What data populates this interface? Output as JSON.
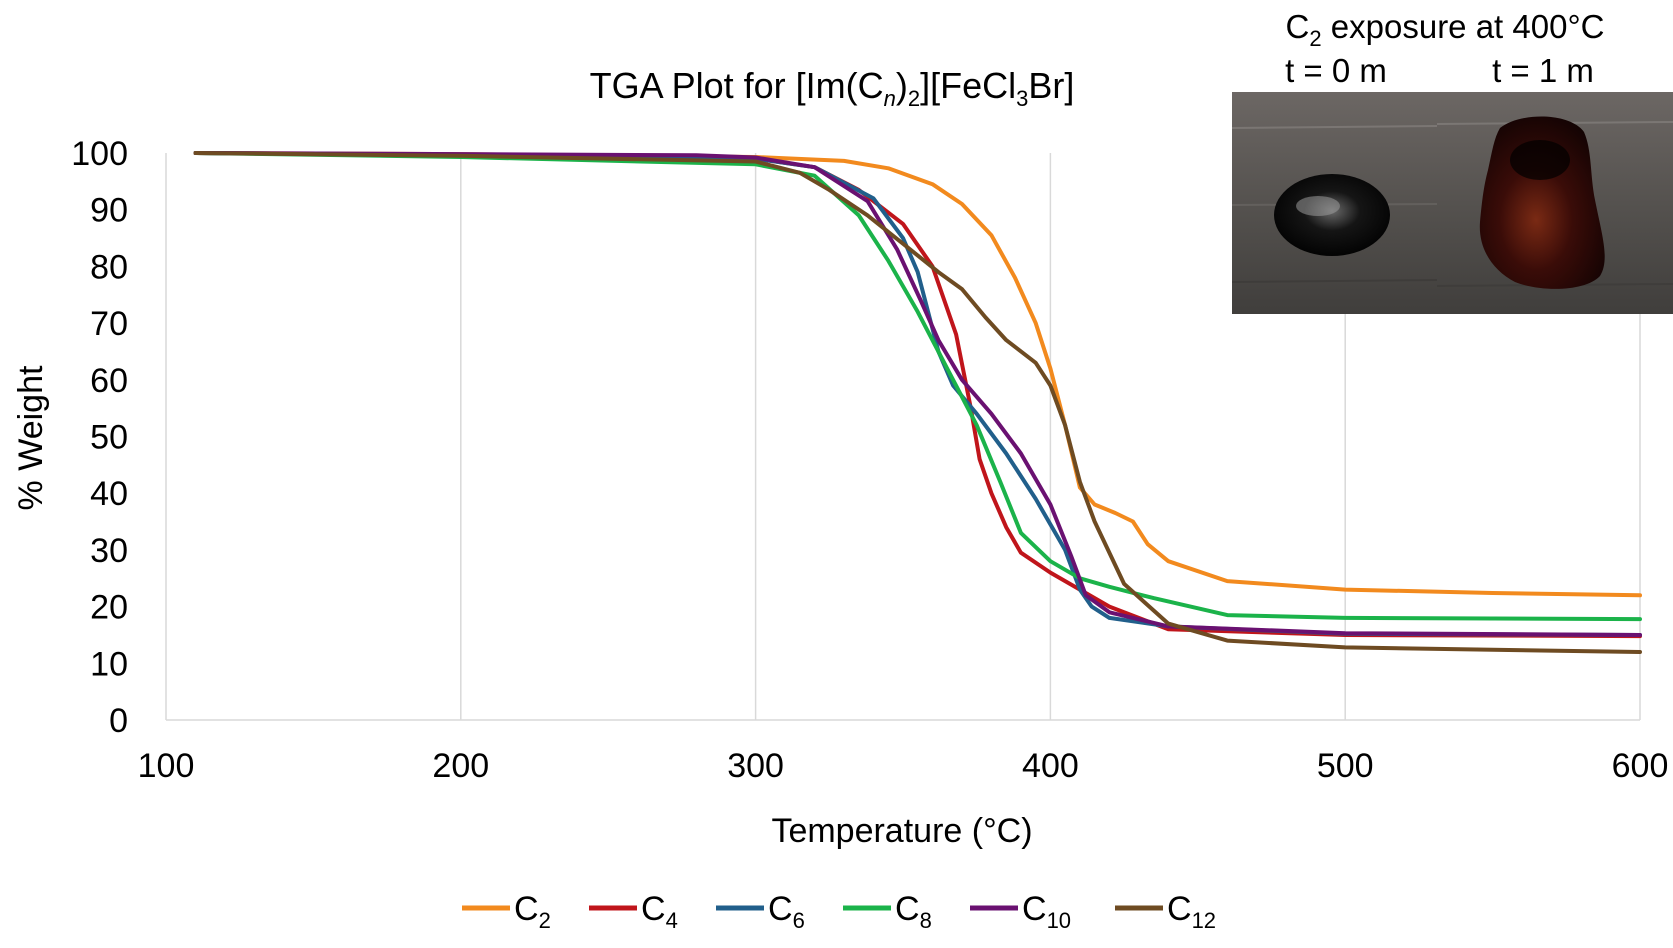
{
  "chart_data": {
    "type": "line",
    "title": {
      "prefix": "TGA Plot for [Im(C",
      "n": "n",
      "mid": ")",
      "two": "2",
      "mid2": "][FeCl",
      "three": "3",
      "suffix": "Br]"
    },
    "xlabel": "Temperature (°C)",
    "ylabel": "% Weight",
    "xlim": [
      100,
      600
    ],
    "ylim": [
      0,
      100
    ],
    "xticks": [
      100,
      200,
      300,
      400,
      500,
      600
    ],
    "yticks": [
      0,
      10,
      20,
      30,
      40,
      50,
      60,
      70,
      80,
      90,
      100
    ],
    "grid": "vertical",
    "legend_position": "bottom",
    "series": [
      {
        "name": "C",
        "sub": "2",
        "color": "#F28A1E",
        "x": [
          110,
          200,
          300,
          330,
          345,
          360,
          370,
          380,
          388,
          395,
          400,
          405,
          410,
          415,
          422,
          428,
          433,
          440,
          460,
          500,
          550,
          600
        ],
        "y": [
          100,
          99.8,
          99.3,
          98.6,
          97.3,
          94.5,
          91,
          85.5,
          78,
          70,
          62,
          52,
          41,
          38,
          36.5,
          35,
          31,
          28,
          24.5,
          23,
          22.4,
          22
        ]
      },
      {
        "name": "C",
        "sub": "4",
        "color": "#C0151B",
        "x": [
          110,
          200,
          300,
          320,
          335,
          350,
          360,
          368,
          373,
          376,
          380,
          385,
          390,
          400,
          410,
          420,
          440,
          500,
          600
        ],
        "y": [
          100,
          99.7,
          99,
          97.5,
          93.5,
          87.5,
          80,
          68,
          55,
          46,
          40,
          34,
          29.5,
          26,
          23,
          20,
          16,
          15,
          14.8
        ]
      },
      {
        "name": "C",
        "sub": "6",
        "color": "#215F8B",
        "x": [
          110,
          200,
          300,
          320,
          340,
          350,
          355,
          358,
          362,
          367,
          375,
          385,
          395,
          405,
          410,
          414,
          420,
          440,
          500,
          600
        ],
        "y": [
          100,
          99.7,
          99,
          97.5,
          92,
          85,
          79,
          73,
          65,
          59,
          54,
          47,
          39,
          30,
          23,
          20,
          18,
          16.5,
          15.2,
          15
        ]
      },
      {
        "name": "C",
        "sub": "8",
        "color": "#1BB34A",
        "x": [
          110,
          200,
          300,
          320,
          335,
          345,
          355,
          365,
          375,
          383,
          390,
          400,
          410,
          420,
          435,
          460,
          500,
          600
        ],
        "y": [
          100,
          99.3,
          98,
          96,
          89,
          81,
          72,
          62,
          52,
          42,
          33,
          28,
          25,
          23.5,
          21.5,
          18.5,
          18,
          17.8
        ]
      },
      {
        "name": "C",
        "sub": "10",
        "color": "#6A1171",
        "x": [
          110,
          200,
          280,
          300,
          320,
          338,
          348,
          356,
          362,
          370,
          380,
          390,
          400,
          407,
          412,
          420,
          440,
          500,
          600
        ],
        "y": [
          100,
          99.8,
          99.6,
          99.2,
          97.5,
          91.5,
          83,
          74,
          67,
          60,
          54,
          47,
          38,
          29,
          22,
          19,
          16.5,
          15.3,
          15
        ]
      },
      {
        "name": "C",
        "sub": "12",
        "color": "#6E4B22",
        "x": [
          110,
          200,
          300,
          315,
          325,
          338,
          350,
          362,
          370,
          378,
          385,
          395,
          400,
          405,
          410,
          415,
          425,
          440,
          460,
          500,
          550,
          600
        ],
        "y": [
          100,
          99.5,
          98.5,
          96.5,
          93.5,
          89,
          84,
          79,
          76,
          71,
          67,
          63,
          59,
          52,
          42,
          35,
          24,
          17,
          14,
          12.8,
          12.4,
          12
        ]
      }
    ]
  },
  "inset": {
    "title": {
      "prefix": "C",
      "sub": "2",
      "suffix": " exposure at 400°C"
    },
    "left_label": "t = 0 m",
    "right_label": "t = 1 m"
  }
}
